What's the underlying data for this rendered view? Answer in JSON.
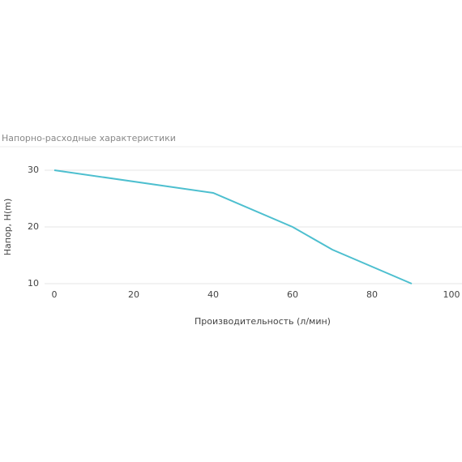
{
  "chart_data": {
    "type": "line",
    "title": "Напорно-расходные характеристики",
    "x_label": "Производительность (л/мин)",
    "y_label": "Напор, H(m)",
    "series": [
      {
        "name": "Напор",
        "color": "#4dbfcf",
        "x": [
          0,
          40,
          60,
          70,
          90
        ],
        "values": [
          30,
          26,
          20,
          16,
          10
        ]
      }
    ],
    "xlim": [
      0,
      100
    ],
    "xticks": [
      0,
      20,
      40,
      60,
      80,
      100
    ],
    "ylim": [
      10,
      30
    ],
    "yticks": [
      10,
      20,
      30
    ],
    "grid": true
  }
}
